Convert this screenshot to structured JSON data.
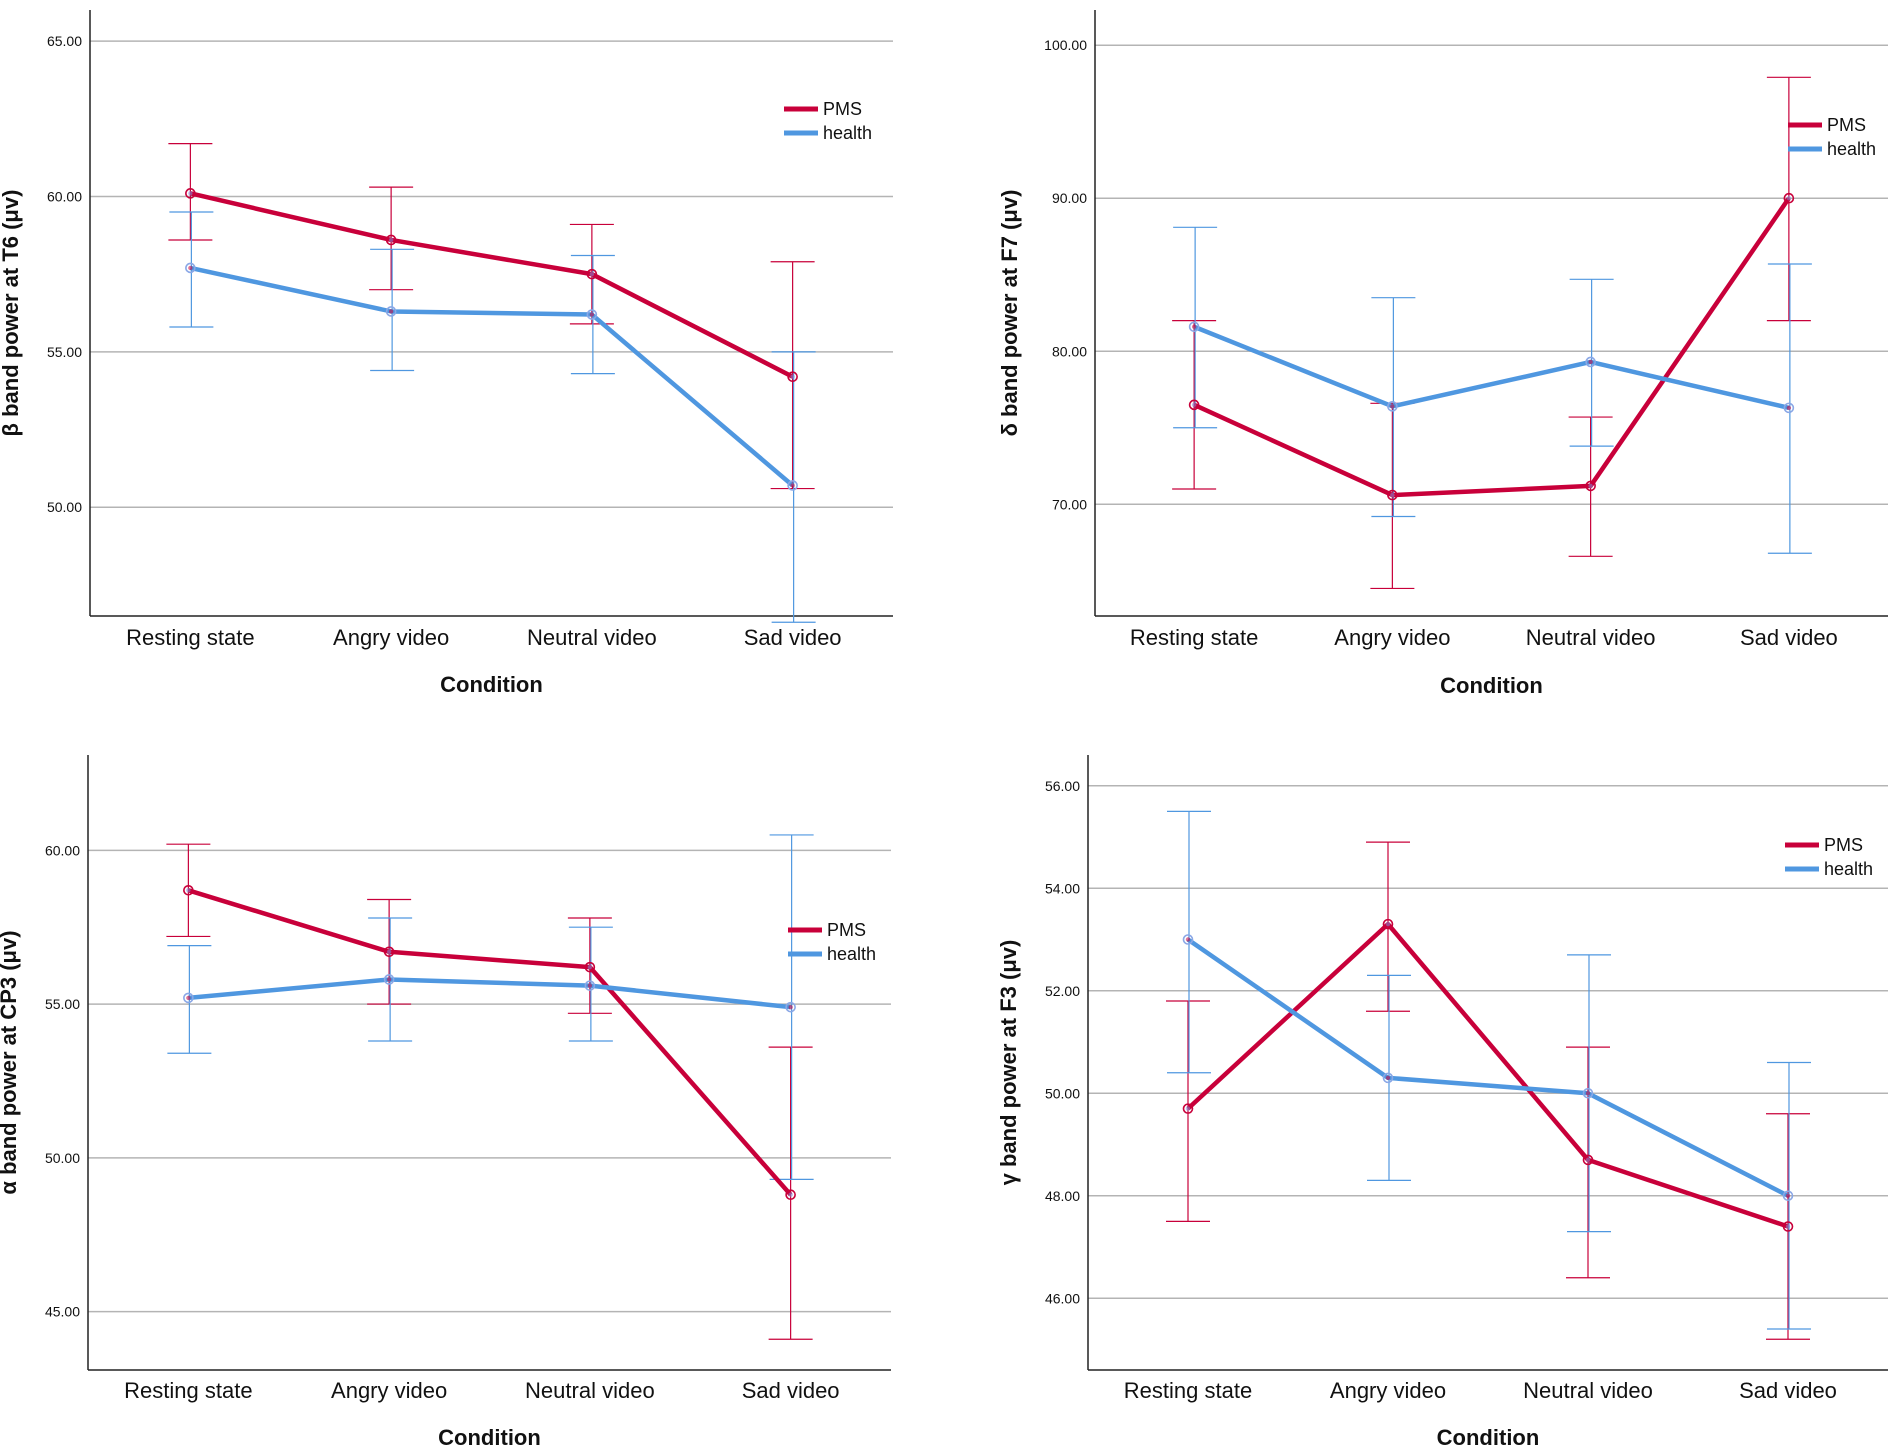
{
  "colors": {
    "PMS": "#c8003a",
    "health": "#4f97e0",
    "grid": "#b4b4b4",
    "axis": "#222222"
  },
  "chart_data": [
    {
      "type": "line",
      "id": "beta",
      "categories": [
        "Resting state",
        "Angry video",
        "Neutral video",
        "Sad video"
      ],
      "xlabel": "Condition",
      "ylabel": "β band power at T6 (μv)",
      "ylim": [
        46.5,
        66.0
      ],
      "yticks": [
        50.0,
        55.0,
        60.0,
        65.0
      ],
      "tick_labels": [
        "50.00",
        "55.00",
        "60.00",
        "65.00"
      ],
      "legend": "top-right",
      "series": [
        {
          "name": "PMS",
          "values": [
            60.1,
            58.6,
            57.5,
            54.2
          ],
          "err_low": [
            58.6,
            57.0,
            55.9,
            50.6
          ],
          "err_high": [
            61.7,
            60.3,
            59.1,
            57.9
          ]
        },
        {
          "name": "health",
          "values": [
            57.7,
            56.3,
            56.2,
            50.7
          ],
          "err_low": [
            55.8,
            54.4,
            54.3,
            46.3
          ],
          "err_high": [
            59.5,
            58.3,
            58.1,
            55.0
          ]
        }
      ]
    },
    {
      "type": "line",
      "id": "delta",
      "categories": [
        "Resting state",
        "Angry video",
        "Neutral video",
        "Sad video"
      ],
      "xlabel": "Condition",
      "ylabel": "δ band power at F7 (μv)",
      "ylim": [
        62.7,
        102.3
      ],
      "yticks": [
        70.0,
        80.0,
        90.0,
        100.0
      ],
      "tick_labels": [
        "70.00",
        "80.00",
        "90.00",
        "100.00"
      ],
      "legend": "top-right",
      "series": [
        {
          "name": "PMS",
          "values": [
            76.5,
            70.6,
            71.2,
            90.0
          ],
          "err_low": [
            71.0,
            64.5,
            66.6,
            82.0
          ],
          "err_high": [
            82.0,
            76.6,
            75.7,
            97.9
          ]
        },
        {
          "name": "health",
          "values": [
            81.6,
            76.4,
            79.3,
            76.3
          ],
          "err_low": [
            75.0,
            69.2,
            73.8,
            66.8
          ],
          "err_high": [
            88.1,
            83.5,
            84.7,
            85.7
          ]
        }
      ]
    },
    {
      "type": "line",
      "id": "alpha",
      "categories": [
        "Resting state",
        "Angry video",
        "Neutral video",
        "Sad video"
      ],
      "xlabel": "Condition",
      "ylabel": "α band power at CP3 (μv)",
      "ylim": [
        43.1,
        63.1
      ],
      "yticks": [
        45.0,
        50.0,
        55.0,
        60.0
      ],
      "tick_labels": [
        "45.00",
        "50.00",
        "55.00",
        "60.00"
      ],
      "legend": "right",
      "series": [
        {
          "name": "PMS",
          "values": [
            58.7,
            56.7,
            56.2,
            48.8
          ],
          "err_low": [
            57.2,
            55.0,
            54.7,
            44.1
          ],
          "err_high": [
            60.2,
            58.4,
            57.8,
            53.6
          ]
        },
        {
          "name": "health",
          "values": [
            55.2,
            55.8,
            55.6,
            54.9
          ],
          "err_low": [
            53.4,
            53.8,
            53.8,
            49.3
          ],
          "err_high": [
            56.9,
            57.8,
            57.5,
            60.5
          ]
        }
      ]
    },
    {
      "type": "line",
      "id": "gamma",
      "categories": [
        "Resting state",
        "Angry video",
        "Neutral video",
        "Sad video"
      ],
      "xlabel": "Condition",
      "ylabel": "γ band power at F3 (μv)",
      "ylim": [
        44.6,
        56.6
      ],
      "yticks": [
        46.0,
        48.0,
        50.0,
        52.0,
        54.0,
        56.0
      ],
      "tick_labels": [
        "46.00",
        "48.00",
        "50.00",
        "52.00",
        "54.00",
        "56.00"
      ],
      "legend": "top-right",
      "series": [
        {
          "name": "PMS",
          "values": [
            49.7,
            53.3,
            48.7,
            47.4
          ],
          "err_low": [
            47.5,
            51.6,
            46.4,
            45.2
          ],
          "err_high": [
            51.8,
            54.9,
            50.9,
            49.6
          ]
        },
        {
          "name": "health",
          "values": [
            53.0,
            50.3,
            50.0,
            48.0
          ],
          "err_low": [
            50.4,
            48.3,
            47.3,
            45.4
          ],
          "err_high": [
            55.5,
            52.3,
            52.7,
            50.6
          ]
        }
      ]
    }
  ]
}
